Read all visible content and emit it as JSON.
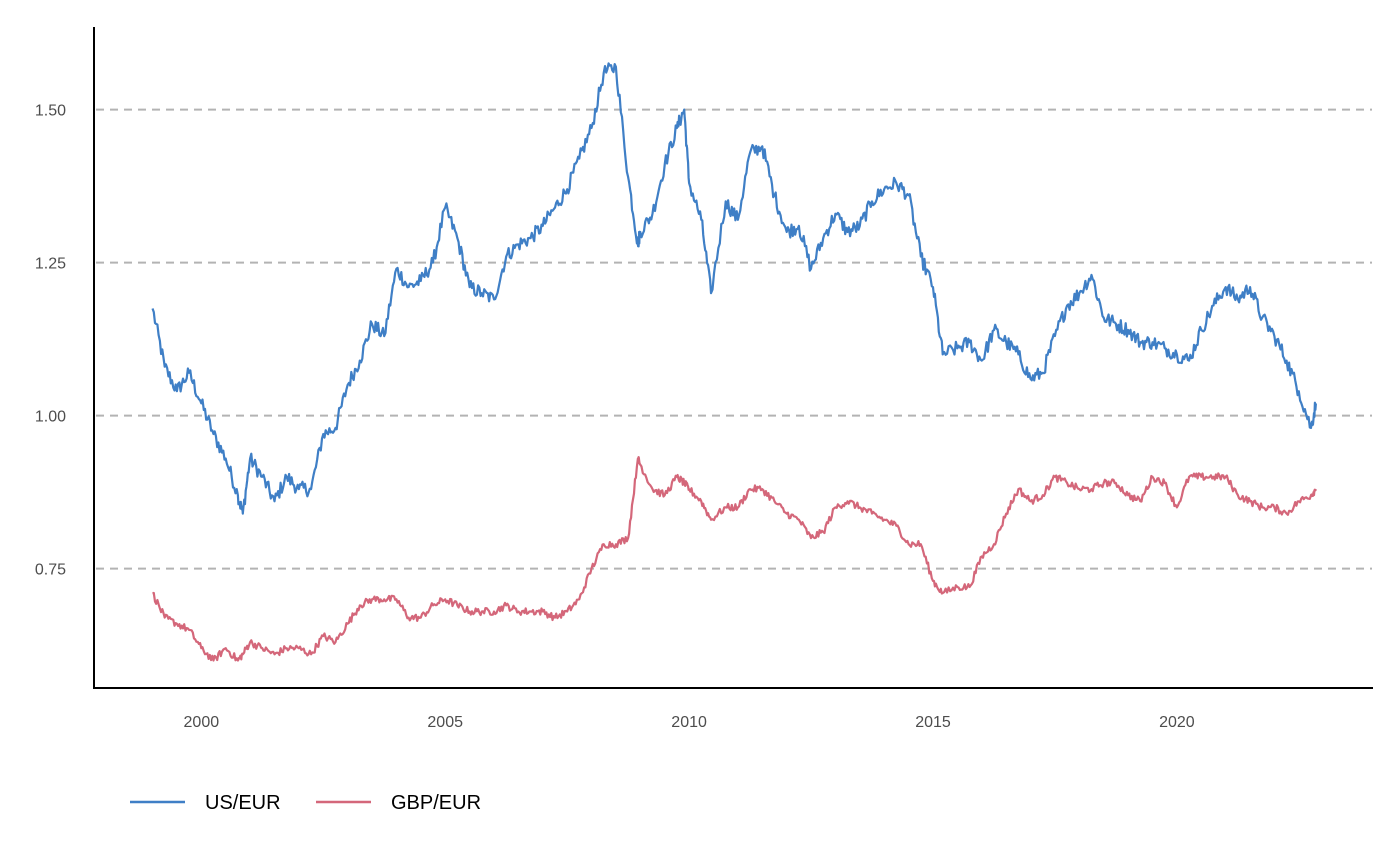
{
  "chart_data": {
    "type": "line",
    "title": "",
    "xlabel": "",
    "ylabel": "",
    "xlim": [
      1997.8,
      2024.0
    ],
    "ylim": [
      0.555,
      1.635
    ],
    "grid": "horizontal-dashed",
    "legend_position": "bottom-left",
    "x_ticks": [
      {
        "value": 2000,
        "label": "2000"
      },
      {
        "value": 2005,
        "label": "2005"
      },
      {
        "value": 2010,
        "label": "2010"
      },
      {
        "value": 2015,
        "label": "2015"
      },
      {
        "value": 2020,
        "label": "2020"
      }
    ],
    "y_ticks": [
      {
        "value": 0.75,
        "label": "0.75"
      },
      {
        "value": 1.0,
        "label": "1.00"
      },
      {
        "value": 1.25,
        "label": "1.25"
      },
      {
        "value": 1.5,
        "label": "1.50"
      }
    ],
    "x": [
      1999.0,
      1999.25,
      1999.5,
      1999.75,
      2000.0,
      2000.25,
      2000.5,
      2000.75,
      2000.85,
      2001.0,
      2001.25,
      2001.5,
      2001.75,
      2002.0,
      2002.25,
      2002.5,
      2002.75,
      2003.0,
      2003.25,
      2003.5,
      2003.75,
      2004.0,
      2004.25,
      2004.5,
      2004.75,
      2005.0,
      2005.25,
      2005.5,
      2005.75,
      2006.0,
      2006.25,
      2006.5,
      2006.75,
      2007.0,
      2007.25,
      2007.5,
      2007.75,
      2008.0,
      2008.25,
      2008.5,
      2008.75,
      2008.95,
      2009.0,
      2009.25,
      2009.5,
      2009.75,
      2009.9,
      2010.0,
      2010.25,
      2010.45,
      2010.75,
      2011.0,
      2011.25,
      2011.5,
      2011.75,
      2012.0,
      2012.25,
      2012.5,
      2012.75,
      2013.0,
      2013.25,
      2013.5,
      2013.75,
      2014.0,
      2014.25,
      2014.5,
      2014.75,
      2015.0,
      2015.2,
      2015.5,
      2015.75,
      2016.0,
      2016.25,
      2016.5,
      2016.75,
      2017.0,
      2017.25,
      2017.5,
      2017.75,
      2018.0,
      2018.25,
      2018.5,
      2018.75,
      2019.0,
      2019.25,
      2019.5,
      2019.75,
      2020.0,
      2020.25,
      2020.5,
      2020.75,
      2021.0,
      2021.25,
      2021.5,
      2021.75,
      2022.0,
      2022.25,
      2022.5,
      2022.75,
      2022.85
    ],
    "series": [
      {
        "name": "US/EUR",
        "color": "#3f7fc6",
        "values": [
          1.175,
          1.08,
          1.04,
          1.07,
          1.02,
          0.97,
          0.93,
          0.87,
          0.84,
          0.93,
          0.9,
          0.86,
          0.9,
          0.88,
          0.88,
          0.97,
          0.98,
          1.05,
          1.09,
          1.15,
          1.13,
          1.24,
          1.21,
          1.22,
          1.25,
          1.34,
          1.29,
          1.21,
          1.2,
          1.19,
          1.26,
          1.28,
          1.29,
          1.31,
          1.34,
          1.37,
          1.42,
          1.47,
          1.56,
          1.57,
          1.39,
          1.28,
          1.3,
          1.33,
          1.41,
          1.47,
          1.5,
          1.38,
          1.32,
          1.2,
          1.35,
          1.32,
          1.43,
          1.44,
          1.36,
          1.3,
          1.31,
          1.24,
          1.29,
          1.33,
          1.3,
          1.31,
          1.35,
          1.37,
          1.38,
          1.36,
          1.26,
          1.21,
          1.1,
          1.11,
          1.12,
          1.09,
          1.14,
          1.12,
          1.1,
          1.06,
          1.07,
          1.13,
          1.18,
          1.2,
          1.23,
          1.16,
          1.15,
          1.14,
          1.12,
          1.12,
          1.11,
          1.1,
          1.09,
          1.14,
          1.18,
          1.21,
          1.19,
          1.21,
          1.16,
          1.13,
          1.09,
          1.04,
          0.98,
          1.02
        ]
      },
      {
        "name": "GBP/EUR",
        "color": "#d4677a",
        "values": [
          0.71,
          0.67,
          0.66,
          0.65,
          0.62,
          0.6,
          0.62,
          0.6,
          0.61,
          0.63,
          0.62,
          0.61,
          0.62,
          0.62,
          0.61,
          0.64,
          0.63,
          0.66,
          0.69,
          0.7,
          0.7,
          0.7,
          0.67,
          0.67,
          0.69,
          0.7,
          0.69,
          0.68,
          0.68,
          0.68,
          0.69,
          0.68,
          0.68,
          0.68,
          0.67,
          0.68,
          0.7,
          0.75,
          0.79,
          0.79,
          0.8,
          0.93,
          0.92,
          0.88,
          0.87,
          0.9,
          0.89,
          0.88,
          0.86,
          0.83,
          0.85,
          0.85,
          0.88,
          0.88,
          0.86,
          0.84,
          0.83,
          0.8,
          0.81,
          0.85,
          0.86,
          0.85,
          0.84,
          0.83,
          0.82,
          0.79,
          0.79,
          0.73,
          0.71,
          0.72,
          0.72,
          0.77,
          0.79,
          0.84,
          0.88,
          0.86,
          0.87,
          0.9,
          0.89,
          0.88,
          0.88,
          0.89,
          0.89,
          0.87,
          0.86,
          0.9,
          0.89,
          0.85,
          0.9,
          0.9,
          0.9,
          0.9,
          0.87,
          0.86,
          0.85,
          0.85,
          0.84,
          0.86,
          0.87,
          0.88
        ]
      }
    ]
  }
}
